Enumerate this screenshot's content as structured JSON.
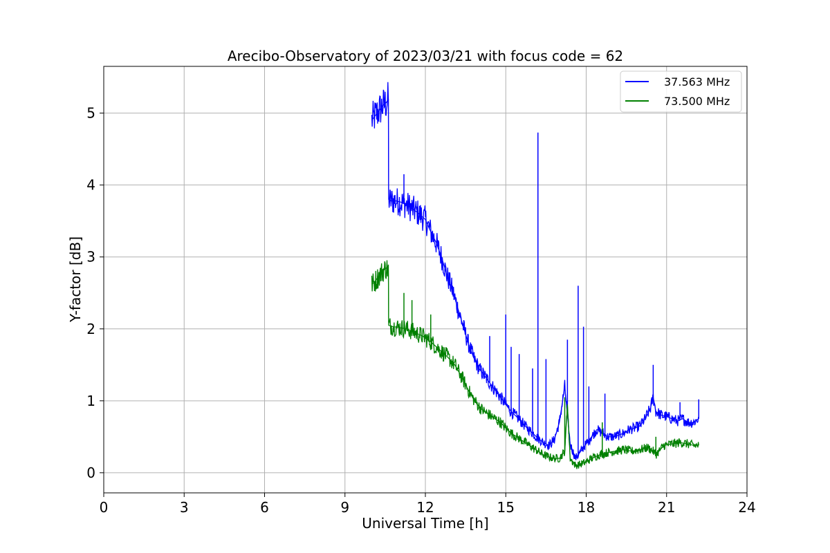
{
  "chart_data": {
    "type": "line",
    "title": "Arecibo-Observatory of 2023/03/21 with focus code = 62",
    "xlabel": "Universal Time [h]",
    "ylabel": "Y-factor [dB]",
    "xlim": [
      0,
      24
    ],
    "ylim": [
      -0.28,
      5.65
    ],
    "xticks": [
      0,
      3,
      6,
      9,
      12,
      15,
      18,
      21,
      24
    ],
    "yticks": [
      0,
      1,
      2,
      3,
      4,
      5
    ],
    "grid": true,
    "legend_position": "top-right",
    "series": [
      {
        "name": "37.563 MHz",
        "color": "#0000ff",
        "x": [
          10.0,
          10.1,
          10.2,
          10.3,
          10.4,
          10.55,
          10.62,
          10.63,
          10.7,
          10.9,
          11.1,
          11.4,
          11.7,
          12.0,
          12.2,
          12.4,
          12.6,
          12.8,
          13.0,
          13.2,
          13.4,
          13.6,
          13.8,
          14.0,
          14.2,
          14.4,
          14.6,
          14.8,
          15.0,
          15.2,
          15.4,
          15.6,
          15.8,
          16.0,
          16.2,
          16.4,
          16.6,
          16.8,
          17.0,
          17.2,
          17.4,
          17.6,
          17.8,
          18.0,
          18.2,
          18.4,
          18.6,
          18.8,
          19.0,
          19.2,
          19.4,
          19.6,
          19.8,
          20.0,
          20.2,
          20.4,
          20.5,
          20.6,
          20.8,
          21.0,
          21.2,
          21.4,
          21.6,
          21.8,
          22.0,
          22.2
        ],
        "y": [
          4.9,
          4.95,
          5.0,
          5.05,
          5.1,
          5.15,
          5.2,
          3.8,
          3.78,
          3.78,
          3.76,
          3.7,
          3.62,
          3.52,
          3.35,
          3.2,
          3.0,
          2.75,
          2.55,
          2.3,
          2.05,
          1.8,
          1.6,
          1.45,
          1.35,
          1.25,
          1.15,
          1.05,
          0.95,
          0.85,
          0.78,
          0.7,
          0.62,
          0.55,
          0.48,
          0.42,
          0.38,
          0.45,
          0.7,
          1.2,
          0.4,
          0.2,
          0.3,
          0.4,
          0.5,
          0.6,
          0.55,
          0.5,
          0.5,
          0.52,
          0.55,
          0.6,
          0.62,
          0.65,
          0.75,
          0.9,
          1.05,
          0.85,
          0.8,
          0.78,
          0.75,
          0.72,
          0.75,
          0.7,
          0.7,
          0.75
        ],
        "spikes": [
          [
            11.2,
            4.15
          ],
          [
            14.4,
            1.9
          ],
          [
            15.0,
            2.2
          ],
          [
            15.2,
            1.75
          ],
          [
            15.5,
            1.65
          ],
          [
            16.0,
            1.45
          ],
          [
            16.2,
            4.73
          ],
          [
            16.5,
            1.58
          ],
          [
            17.3,
            1.85
          ],
          [
            17.7,
            2.6
          ],
          [
            17.9,
            2.03
          ],
          [
            18.1,
            1.2
          ],
          [
            18.7,
            1.1
          ],
          [
            20.5,
            1.5
          ],
          [
            21.5,
            0.98
          ],
          [
            22.2,
            1.02
          ]
        ]
      },
      {
        "name": "73.500 MHz",
        "color": "#008000",
        "x": [
          10.0,
          10.1,
          10.2,
          10.3,
          10.4,
          10.55,
          10.62,
          10.63,
          10.8,
          11.0,
          11.3,
          11.6,
          11.9,
          12.2,
          12.5,
          12.8,
          13.1,
          13.4,
          13.6,
          13.8,
          14.0,
          14.2,
          14.4,
          14.6,
          14.8,
          15.0,
          15.2,
          15.4,
          15.6,
          15.8,
          16.0,
          16.2,
          16.4,
          16.6,
          16.8,
          17.0,
          17.2,
          17.3,
          17.4,
          17.6,
          17.8,
          18.0,
          18.2,
          18.5,
          18.8,
          19.1,
          19.4,
          19.7,
          20.0,
          20.3,
          20.5,
          20.6,
          20.9,
          21.2,
          21.5,
          21.8,
          22.0,
          22.2
        ],
        "y": [
          2.62,
          2.65,
          2.7,
          2.75,
          2.8,
          2.85,
          2.82,
          2.05,
          2.03,
          2.02,
          2.0,
          1.95,
          1.9,
          1.82,
          1.72,
          1.62,
          1.5,
          1.3,
          1.15,
          1.02,
          0.92,
          0.85,
          0.8,
          0.75,
          0.7,
          0.62,
          0.55,
          0.5,
          0.45,
          0.4,
          0.35,
          0.3,
          0.25,
          0.22,
          0.2,
          0.2,
          0.3,
          0.95,
          0.2,
          0.1,
          0.12,
          0.15,
          0.2,
          0.25,
          0.28,
          0.3,
          0.32,
          0.3,
          0.32,
          0.35,
          0.3,
          0.25,
          0.38,
          0.4,
          0.42,
          0.4,
          0.38,
          0.38
        ],
        "spikes": [
          [
            11.2,
            2.5
          ],
          [
            11.5,
            2.4
          ],
          [
            12.2,
            2.2
          ],
          [
            17.2,
            1.05
          ],
          [
            18.6,
            0.7
          ],
          [
            20.6,
            0.5
          ]
        ]
      }
    ]
  }
}
